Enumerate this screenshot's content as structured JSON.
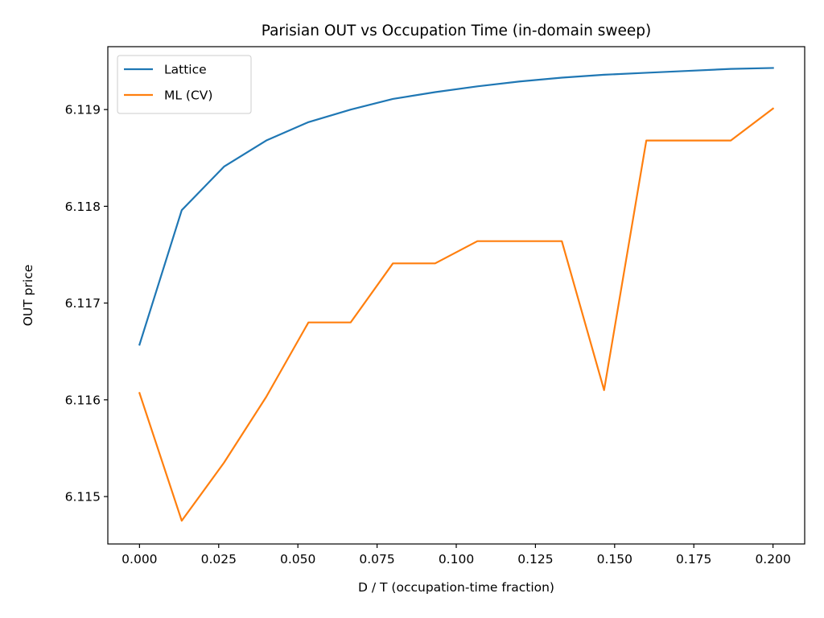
{
  "chart_data": {
    "type": "line",
    "title": "Parisian OUT vs Occupation Time (in-domain sweep)",
    "xlabel": "D / T (occupation-time fraction)",
    "ylabel": "OUT price",
    "xlim": [
      -0.01,
      0.21
    ],
    "ylim": [
      6.11451,
      6.11965
    ],
    "x_ticks": [
      0.0,
      0.025,
      0.05,
      0.075,
      0.1,
      0.125,
      0.15,
      0.175,
      0.2
    ],
    "x_tick_labels": [
      "0.000",
      "0.025",
      "0.050",
      "0.075",
      "0.100",
      "0.125",
      "0.150",
      "0.175",
      "0.200"
    ],
    "y_ticks": [
      6.115,
      6.116,
      6.117,
      6.118,
      6.119
    ],
    "y_tick_labels": [
      "6.115",
      "6.116",
      "6.117",
      "6.118",
      "6.119"
    ],
    "grid": false,
    "legend_position": "top-left",
    "series": [
      {
        "name": "Lattice",
        "color": "#1f77b4",
        "x": [
          0.0,
          0.01333,
          0.02667,
          0.04,
          0.05333,
          0.06667,
          0.08,
          0.09333,
          0.10667,
          0.12,
          0.13333,
          0.14667,
          0.16,
          0.17333,
          0.18667,
          0.2
        ],
        "y": [
          6.11657,
          6.11796,
          6.11841,
          6.11868,
          6.11887,
          6.119,
          6.11911,
          6.11918,
          6.11924,
          6.11929,
          6.11933,
          6.11936,
          6.11938,
          6.1194,
          6.11942,
          6.11943
        ]
      },
      {
        "name": "ML (CV)",
        "color": "#ff7f0e",
        "x": [
          0.0,
          0.01333,
          0.02667,
          0.04,
          0.05333,
          0.06667,
          0.08,
          0.09333,
          0.10667,
          0.12,
          0.13333,
          0.14667,
          0.16,
          0.17333,
          0.18667,
          0.2
        ],
        "y": [
          6.11607,
          6.11475,
          6.11535,
          6.11603,
          6.1168,
          6.1168,
          6.11741,
          6.11741,
          6.11764,
          6.11764,
          6.11764,
          6.1161,
          6.11868,
          6.11868,
          6.11868,
          6.11901
        ]
      }
    ]
  }
}
